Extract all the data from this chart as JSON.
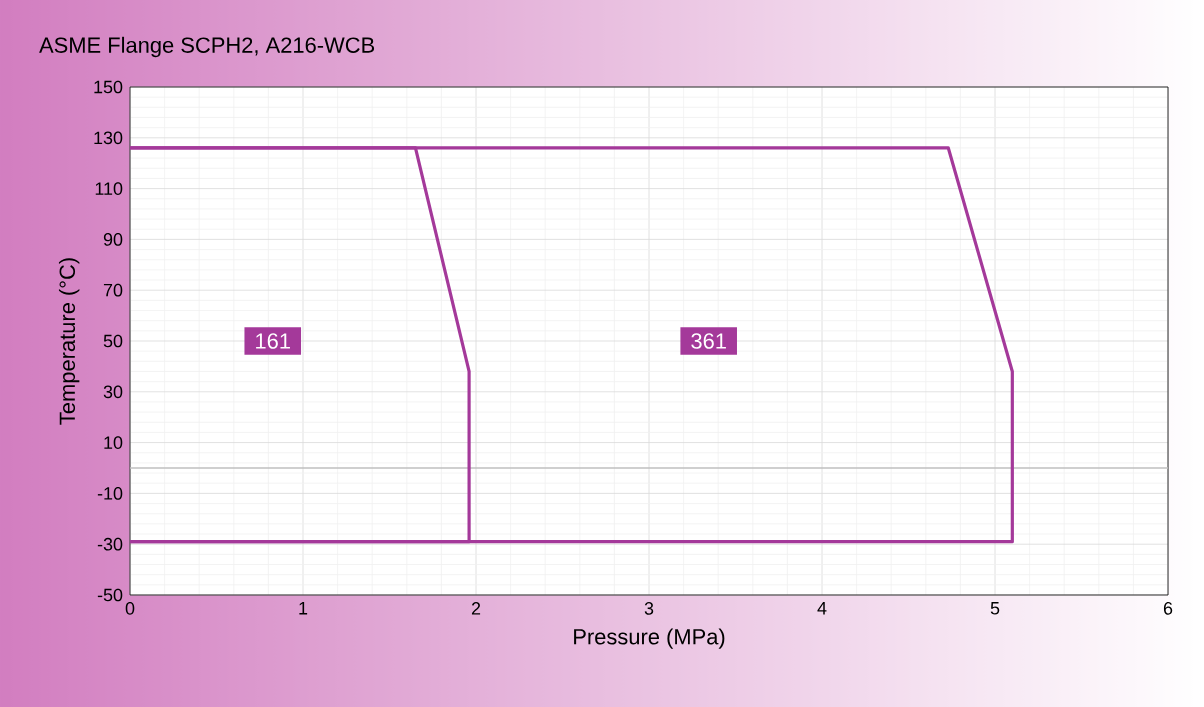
{
  "chart_data": {
    "type": "line",
    "title": "ASME Flange SCPH2, A216-WCB",
    "xlabel": "Pressure (MPa)",
    "ylabel": "Temperature (°C)",
    "series": [
      {
        "name": "161",
        "color": "#a4399a",
        "x": [
          0,
          1.65,
          1.96,
          1.96,
          0
        ],
        "values": [
          126,
          126,
          38,
          -29,
          -29
        ]
      },
      {
        "name": "361",
        "color": "#a4399a",
        "x": [
          0,
          4.73,
          5.1,
          5.1,
          0
        ],
        "values": [
          126,
          126,
          38,
          -29,
          -29
        ]
      }
    ],
    "xlim": [
      0,
      6
    ],
    "ylim": [
      -50,
      150
    ],
    "xticks": [
      0,
      1,
      2,
      3,
      4,
      5,
      6
    ],
    "yticks": [
      -50,
      -30,
      -10,
      10,
      30,
      50,
      70,
      90,
      110,
      130,
      150
    ],
    "grid": true,
    "marker": "none",
    "line_style": "solid",
    "ref_lines": [
      {
        "axis": "y",
        "value": 0,
        "color": "#bfbfbf"
      }
    ]
  }
}
